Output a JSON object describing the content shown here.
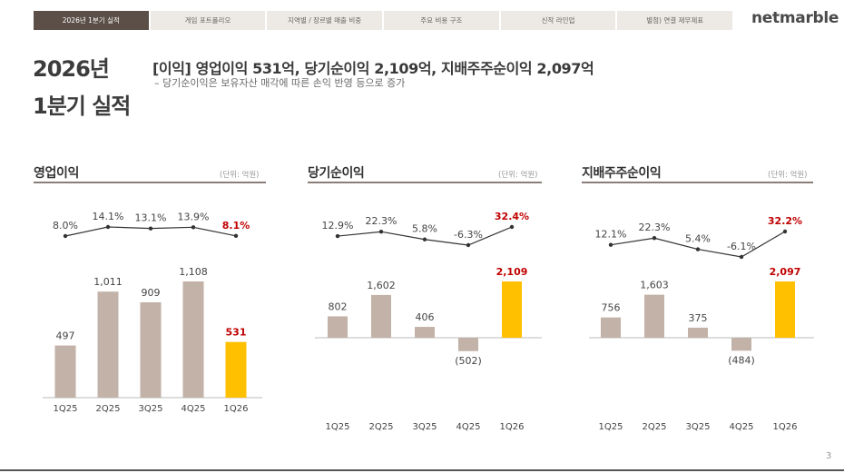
{
  "nav": {
    "tabs": [
      {
        "label": "2026년 1분기 실적",
        "active": true
      },
      {
        "label": "게임 포트폴리오",
        "active": false
      },
      {
        "label": "지역별 / 장르별 매출 비중",
        "active": false
      },
      {
        "label": "주요 비용 구조",
        "active": false
      },
      {
        "label": "신작 라인업",
        "active": false
      },
      {
        "label": "별첨) 연결 재무제표",
        "active": false
      }
    ]
  },
  "brand": {
    "logo": "netmarble"
  },
  "page": {
    "title_line1": "2026년",
    "title_line2": "1분기 실적",
    "headline": "[이익] 영업이익 531억,  당기순이익 2,109억, 지배주주순이익 2,097억",
    "subline": "– 당기순이익은 보유자산 매각에 따른 손익 반영 등으로 증가",
    "page_number": "3"
  },
  "colors": {
    "bar": "#c2b2a7",
    "highlight_bar": "#ffc000",
    "highlight_text": "#c00000",
    "line": "#333333",
    "axis": "#bbbbbb"
  },
  "chart_data": [
    {
      "type": "bar",
      "title": "영업이익",
      "unit": "(단위: 억원)",
      "categories": [
        "1Q25",
        "2Q25",
        "3Q25",
        "4Q25",
        "1Q26"
      ],
      "values": [
        497,
        1011,
        909,
        1108,
        531
      ],
      "value_labels": [
        "497",
        "1,011",
        "909",
        "1,108",
        "531"
      ],
      "highlight_index": 4,
      "ylim": [
        0,
        1450
      ],
      "margin_series": {
        "type": "line",
        "values": [
          8.0,
          14.1,
          13.1,
          13.9,
          8.1
        ],
        "labels": [
          "8.0%",
          "14.1%",
          "13.1%",
          "13.9%",
          "8.1%"
        ],
        "ylim": [
          0,
          20
        ]
      }
    },
    {
      "type": "bar",
      "title": "당기순이익",
      "unit": "(단위: 억원)",
      "categories": [
        "1Q25",
        "2Q25",
        "3Q25",
        "4Q25",
        "1Q26"
      ],
      "values": [
        802,
        1602,
        406,
        -502,
        2109
      ],
      "value_labels": [
        "802",
        "1,602",
        "406",
        "(502)",
        "2,109"
      ],
      "highlight_index": 4,
      "ylim": [
        -900,
        2400
      ],
      "margin_series": {
        "type": "line",
        "values": [
          12.9,
          22.3,
          5.8,
          -6.3,
          32.4
        ],
        "labels": [
          "12.9%",
          "22.3%",
          "5.8%",
          "-6.3%",
          "32.4%"
        ],
        "ylim": [
          -40,
          60
        ]
      }
    },
    {
      "type": "bar",
      "title": "지배주주순이익",
      "unit": "(단위: 억원)",
      "categories": [
        "1Q25",
        "2Q25",
        "3Q25",
        "4Q25",
        "1Q26"
      ],
      "values": [
        756,
        1603,
        375,
        -484,
        2097
      ],
      "value_labels": [
        "756",
        "1,603",
        "375",
        "(484)",
        "2,097"
      ],
      "highlight_index": 4,
      "ylim": [
        -900,
        2400
      ],
      "margin_series": {
        "type": "line",
        "values": [
          12.1,
          22.3,
          5.4,
          -6.1,
          32.2
        ],
        "labels": [
          "12.1%",
          "22.3%",
          "5.4%",
          "-6.1%",
          "32.2%"
        ],
        "ylim": [
          -40,
          60
        ]
      }
    }
  ]
}
